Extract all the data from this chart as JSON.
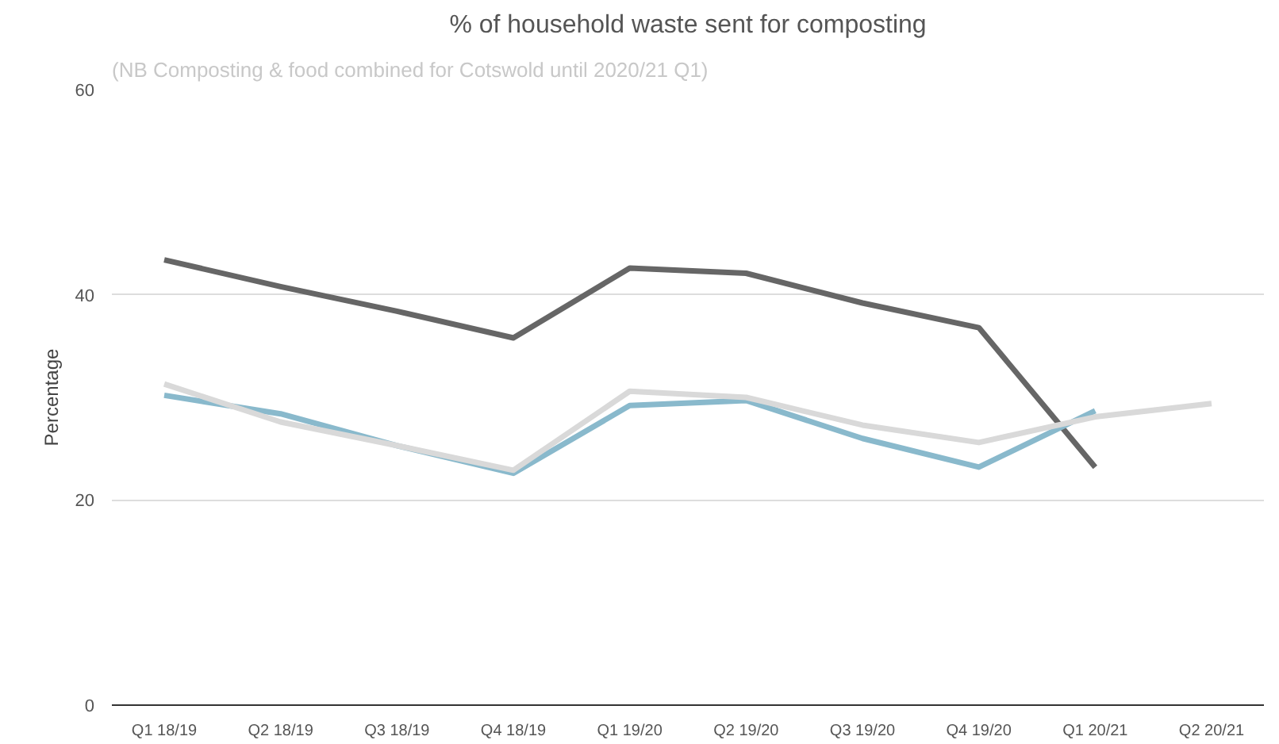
{
  "chart_data": {
    "type": "line",
    "title": "% of household waste sent for composting",
    "subtitle": "(NB Composting & food combined for Cotswold until 2020/21 Q1)",
    "ylabel": "Percentage",
    "categories": [
      "Q1 18/19",
      "Q2 18/19",
      "Q3 18/19",
      "Q4 18/19",
      "Q1 19/20",
      "Q2 19/20",
      "Q3 19/20",
      "Q4 19/20",
      "Q1 20/21",
      "Q2 20/21"
    ],
    "series": [
      {
        "color": "#666666",
        "values": [
          43.4,
          40.8,
          38.4,
          35.8,
          42.6,
          42.1,
          39.2,
          36.8,
          23.2,
          null
        ]
      },
      {
        "color": "#89b9cc",
        "values": [
          30.2,
          28.4,
          25.3,
          22.6,
          29.2,
          29.7,
          26.0,
          23.2,
          28.7,
          null
        ]
      },
      {
        "color": "#d9d9d9",
        "values": [
          31.3,
          27.6,
          25.3,
          22.9,
          30.6,
          30.0,
          27.3,
          25.6,
          28.1,
          29.4
        ]
      }
    ],
    "ylim": [
      0,
      60
    ],
    "yticks": [
      0,
      20,
      40,
      60
    ],
    "grid": "y",
    "line_style": "solid"
  }
}
